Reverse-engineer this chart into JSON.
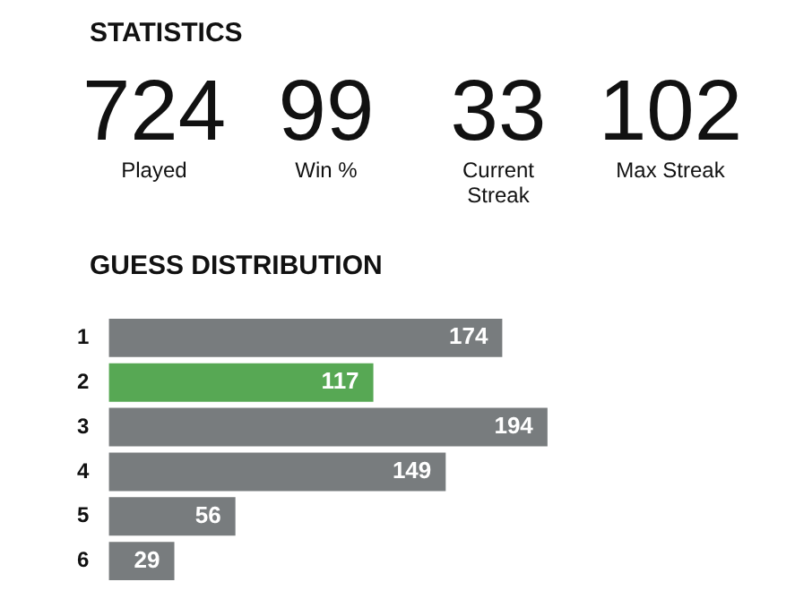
{
  "chart_data": [
    {
      "type": "other",
      "title": "STATISTICS",
      "categories": [
        "Played",
        "Win %",
        "Current Streak",
        "Max Streak"
      ],
      "values": [
        724,
        99,
        33,
        102
      ],
      "data_labels": true
    },
    {
      "type": "bar",
      "title": "GUESS DISTRIBUTION",
      "orientation": "horizontal",
      "categories": [
        "1",
        "2",
        "3",
        "4",
        "5",
        "6"
      ],
      "values": [
        174,
        117,
        194,
        149,
        56,
        29
      ],
      "colors": [
        "#787c7e",
        "#57a854",
        "#787c7e",
        "#787c7e",
        "#787c7e",
        "#787c7e"
      ],
      "data_labels": true
    }
  ]
}
